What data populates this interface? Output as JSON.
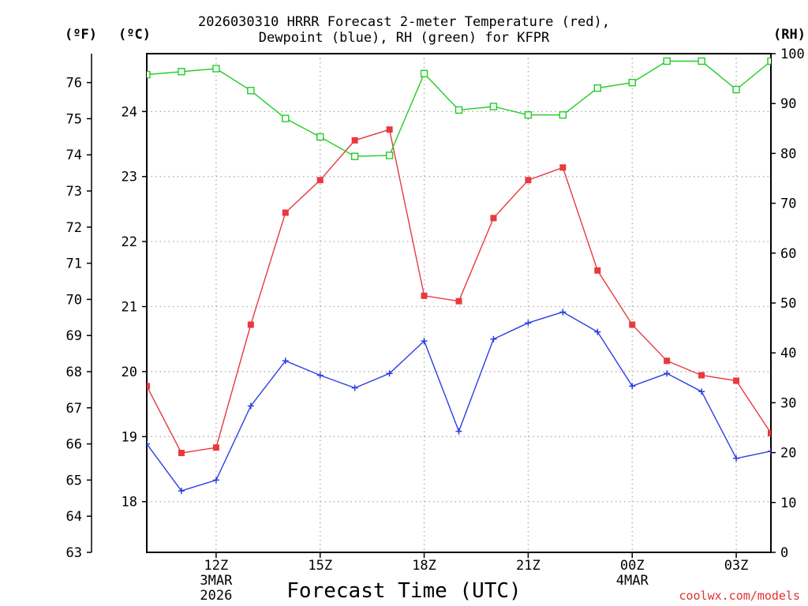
{
  "title": {
    "line1": "2026030310 HRRR Forecast 2-meter Temperature (red),",
    "line2": "Dewpoint (blue), RH (green) for KFPR"
  },
  "axis_units": {
    "fahrenheit": "(ºF)",
    "celsius": "(ºC)",
    "rh": "(RH)"
  },
  "xlabel": "Forecast Time (UTC)",
  "credit": "coolwx.com/models",
  "colors": {
    "temperature": "#e8393e",
    "dewpoint": "#2b3fe0",
    "rh": "#22cc22",
    "grid": "#aaaaaa",
    "credit": "#e03030"
  },
  "chart_data": {
    "type": "line",
    "x_index_range": [
      0,
      18
    ],
    "x_ticks": [
      {
        "i": 2,
        "lines": [
          "12Z",
          "3MAR",
          "2026"
        ]
      },
      {
        "i": 5,
        "lines": [
          "15Z"
        ]
      },
      {
        "i": 8,
        "lines": [
          "18Z"
        ]
      },
      {
        "i": 11,
        "lines": [
          "21Z"
        ]
      },
      {
        "i": 14,
        "lines": [
          "00Z",
          "4MAR"
        ]
      },
      {
        "i": 17,
        "lines": [
          "03Z"
        ]
      }
    ],
    "hours": [
      "10Z",
      "11Z",
      "12Z",
      "13Z",
      "14Z",
      "15Z",
      "16Z",
      "17Z",
      "18Z",
      "19Z",
      "20Z",
      "21Z",
      "22Z",
      "23Z",
      "00Z",
      "01Z",
      "02Z",
      "03Z",
      "04Z"
    ],
    "left_axis_f": {
      "label": "(ºF)",
      "range": [
        63,
        76.8
      ],
      "ticks": [
        63,
        64,
        65,
        66,
        67,
        68,
        69,
        70,
        71,
        72,
        73,
        74,
        75,
        76
      ]
    },
    "left_axis_c": {
      "label": "(ºC)",
      "range": [
        17.22,
        24.89
      ],
      "ticks": [
        18,
        19,
        20,
        21,
        22,
        23,
        24
      ]
    },
    "right_axis_rh": {
      "label": "(RH)",
      "range": [
        0,
        100
      ],
      "ticks": [
        0,
        10,
        20,
        30,
        40,
        50,
        60,
        70,
        80,
        90,
        100
      ]
    },
    "series": [
      {
        "name": "Temperature",
        "units": "F",
        "axis": "f",
        "color": "#e8393e",
        "marker": "filled-square",
        "values": [
          67.6,
          65.75,
          65.9,
          69.3,
          72.4,
          73.3,
          74.4,
          74.7,
          70.1,
          69.95,
          72.25,
          73.3,
          73.65,
          70.8,
          69.3,
          68.3,
          67.9,
          67.75,
          66.3
        ]
      },
      {
        "name": "Dewpoint",
        "units": "F",
        "axis": "f",
        "color": "#2b3fe0",
        "marker": "plus",
        "values": [
          66.0,
          64.7,
          65.0,
          67.05,
          68.3,
          67.9,
          67.55,
          67.95,
          68.85,
          66.35,
          68.9,
          69.35,
          69.65,
          69.1,
          67.6,
          67.95,
          67.45,
          65.6,
          65.8
        ]
      },
      {
        "name": "RH",
        "units": "%",
        "axis": "rh",
        "color": "#22cc22",
        "marker": "open-square",
        "values": [
          95.8,
          96.4,
          97.0,
          92.6,
          87.0,
          83.3,
          79.4,
          79.6,
          96.0,
          88.7,
          89.4,
          87.7,
          87.7,
          93.1,
          94.2,
          98.5,
          98.5,
          92.8,
          98.5
        ]
      }
    ],
    "grid": true
  }
}
